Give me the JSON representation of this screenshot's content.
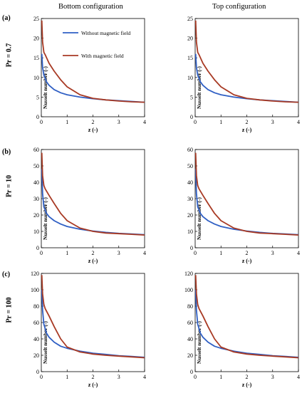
{
  "columns": [
    "Bottom configuration",
    "Top configuration"
  ],
  "rows": [
    {
      "tag": "(a)",
      "pr_label": "Pr = 0.7"
    },
    {
      "tag": "(b)",
      "pr_label": "Pr = 10"
    },
    {
      "tag": "(c)",
      "pr_label": "Pr = 100"
    }
  ],
  "colors": {
    "without": "#2f5fc4",
    "with": "#a83a24"
  },
  "chart_data": [
    {
      "type": "line",
      "row": 0,
      "col": 0,
      "xlabel": "z (-)",
      "ylabel": "Nusselt number (-)",
      "xlim": [
        0,
        4
      ],
      "ylim": [
        0,
        25
      ],
      "xticks": [
        0,
        1,
        2,
        3,
        4
      ],
      "yticks": [
        0,
        5,
        10,
        15,
        20,
        25
      ],
      "legend": "top-right",
      "series": [
        {
          "name": "Without magnetic field",
          "x": [
            0.02,
            0.05,
            0.1,
            0.2,
            0.3,
            0.5,
            0.75,
            1,
            1.5,
            2,
            2.5,
            3,
            3.5,
            4
          ],
          "y": [
            16.0,
            12.5,
            10.6,
            8.9,
            8.0,
            6.9,
            6.1,
            5.6,
            5.0,
            4.6,
            4.3,
            4.1,
            3.9,
            3.7
          ]
        },
        {
          "name": "With magnetic field",
          "x": [
            0.02,
            0.05,
            0.1,
            0.15,
            0.3,
            0.5,
            0.75,
            1,
            1.5,
            2,
            2.5,
            3,
            3.5,
            4
          ],
          "y": [
            24.5,
            19.0,
            16.4,
            15.8,
            13.6,
            11.6,
            9.4,
            7.6,
            5.6,
            4.7,
            4.3,
            4.0,
            3.8,
            3.7
          ]
        }
      ]
    },
    {
      "type": "line",
      "row": 0,
      "col": 1,
      "xlabel": "z (-)",
      "ylabel": "Nusselt number (-)",
      "xlim": [
        0,
        4
      ],
      "ylim": [
        0,
        25
      ],
      "xticks": [
        0,
        1,
        2,
        3,
        4
      ],
      "yticks": [
        0,
        5,
        10,
        15,
        20,
        25
      ],
      "legend": "",
      "series": [
        {
          "name": "Without magnetic field",
          "x": [
            0.02,
            0.05,
            0.1,
            0.2,
            0.3,
            0.5,
            0.75,
            1,
            1.5,
            2,
            2.5,
            3,
            3.5,
            4
          ],
          "y": [
            16.0,
            12.5,
            10.6,
            8.9,
            8.0,
            6.9,
            6.1,
            5.6,
            5.0,
            4.6,
            4.3,
            4.1,
            3.9,
            3.7
          ]
        },
        {
          "name": "With magnetic field",
          "x": [
            0.02,
            0.05,
            0.1,
            0.15,
            0.3,
            0.5,
            0.75,
            1,
            1.5,
            2,
            2.5,
            3,
            3.5,
            4
          ],
          "y": [
            24.5,
            19.0,
            16.4,
            15.8,
            13.6,
            11.6,
            9.4,
            7.6,
            5.6,
            4.7,
            4.3,
            4.0,
            3.8,
            3.7
          ]
        }
      ]
    },
    {
      "type": "line",
      "row": 1,
      "col": 0,
      "xlabel": "z (-)",
      "ylabel": "Nusselt number (-)",
      "xlim": [
        0,
        4
      ],
      "ylim": [
        0,
        60
      ],
      "xticks": [
        0,
        1,
        2,
        3,
        4
      ],
      "yticks": [
        0,
        10,
        20,
        30,
        40,
        50,
        60
      ],
      "legend": "",
      "series": [
        {
          "name": "Without magnetic field",
          "x": [
            0.02,
            0.05,
            0.1,
            0.2,
            0.3,
            0.5,
            0.75,
            1,
            1.5,
            2,
            2.5,
            3,
            3.5,
            4
          ],
          "y": [
            48,
            33,
            25,
            21,
            19,
            16.5,
            14.5,
            13,
            11.3,
            10.2,
            9.4,
            8.8,
            8.4,
            8.0
          ]
        },
        {
          "name": "With magnetic field",
          "x": [
            0.02,
            0.05,
            0.1,
            0.15,
            0.3,
            0.5,
            0.75,
            1,
            1.5,
            2,
            2.5,
            3,
            3.5,
            4
          ],
          "y": [
            58,
            44,
            38,
            36,
            32,
            27,
            21,
            16.5,
            12,
            10,
            9.0,
            8.6,
            8.2,
            7.8
          ]
        }
      ]
    },
    {
      "type": "line",
      "row": 1,
      "col": 1,
      "xlabel": "z (-)",
      "ylabel": "Nusselt number (-)",
      "xlim": [
        0,
        4
      ],
      "ylim": [
        0,
        60
      ],
      "xticks": [
        0,
        1,
        2,
        3,
        4
      ],
      "yticks": [
        0,
        10,
        20,
        30,
        40,
        50,
        60
      ],
      "legend": "",
      "series": [
        {
          "name": "Without magnetic field",
          "x": [
            0.02,
            0.05,
            0.1,
            0.2,
            0.3,
            0.5,
            0.75,
            1,
            1.5,
            2,
            2.5,
            3,
            3.5,
            4
          ],
          "y": [
            48,
            33,
            25,
            21,
            19,
            16.5,
            14.5,
            13,
            11.3,
            10.2,
            9.4,
            8.8,
            8.4,
            8.0
          ]
        },
        {
          "name": "With magnetic field",
          "x": [
            0.02,
            0.05,
            0.1,
            0.15,
            0.3,
            0.5,
            0.75,
            1,
            1.5,
            2,
            2.5,
            3,
            3.5,
            4
          ],
          "y": [
            58,
            44,
            38,
            36,
            32,
            27,
            21,
            16.5,
            12,
            10,
            9.0,
            8.6,
            8.2,
            7.8
          ]
        }
      ]
    },
    {
      "type": "line",
      "row": 2,
      "col": 0,
      "xlabel": "z (-)",
      "ylabel": "Nusselt number (-)",
      "xlim": [
        0,
        4
      ],
      "ylim": [
        0,
        120
      ],
      "xticks": [
        0,
        1,
        2,
        3,
        4
      ],
      "yticks": [
        0,
        20,
        40,
        60,
        80,
        100,
        120
      ],
      "legend": "",
      "series": [
        {
          "name": "Without magnetic field",
          "x": [
            0.02,
            0.05,
            0.1,
            0.2,
            0.3,
            0.5,
            0.75,
            1,
            1.5,
            2,
            2.5,
            3,
            3.5,
            4
          ],
          "y": [
            100,
            75,
            58,
            47,
            42,
            36,
            31,
            28.5,
            25,
            22.5,
            21,
            19.5,
            18.5,
            17.5
          ]
        },
        {
          "name": "With magnetic field",
          "x": [
            0.02,
            0.05,
            0.1,
            0.15,
            0.3,
            0.5,
            0.75,
            1,
            1.5,
            2,
            2.5,
            3,
            3.5,
            4
          ],
          "y": [
            118,
            95,
            82,
            77,
            68,
            55,
            40,
            30,
            24,
            21.5,
            20,
            19,
            18,
            17
          ]
        }
      ]
    },
    {
      "type": "line",
      "row": 2,
      "col": 1,
      "xlabel": "z (-)",
      "ylabel": "Nusselt number (-)",
      "xlim": [
        0,
        4
      ],
      "ylim": [
        0,
        120
      ],
      "xticks": [
        0,
        1,
        2,
        3,
        4
      ],
      "yticks": [
        0,
        20,
        40,
        60,
        80,
        100,
        120
      ],
      "legend": "",
      "series": [
        {
          "name": "Without magnetic field",
          "x": [
            0.02,
            0.05,
            0.1,
            0.2,
            0.3,
            0.5,
            0.75,
            1,
            1.5,
            2,
            2.5,
            3,
            3.5,
            4
          ],
          "y": [
            100,
            75,
            58,
            47,
            42,
            36,
            31,
            28.5,
            25,
            22.5,
            21,
            19.5,
            18.5,
            17.5
          ]
        },
        {
          "name": "With magnetic field",
          "x": [
            0.02,
            0.05,
            0.1,
            0.15,
            0.3,
            0.5,
            0.75,
            1,
            1.5,
            2,
            2.5,
            3,
            3.5,
            4
          ],
          "y": [
            118,
            95,
            82,
            77,
            68,
            55,
            40,
            30,
            24,
            21.5,
            20,
            19,
            18,
            17
          ]
        }
      ]
    }
  ]
}
